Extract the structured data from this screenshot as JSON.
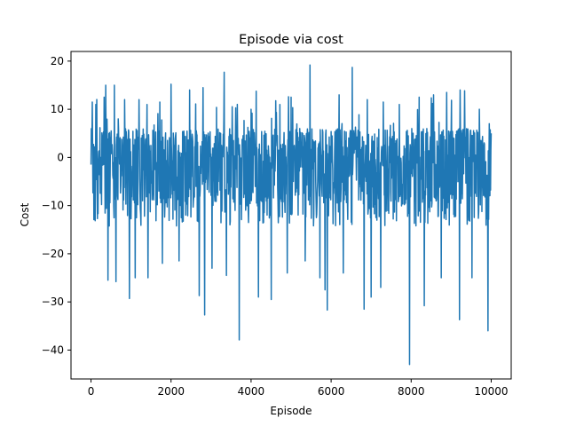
{
  "chart_data": {
    "type": "line",
    "title": "Episode via cost",
    "xlabel": "Episode",
    "ylabel": "Cost",
    "xlim": [
      -500,
      10500
    ],
    "ylim": [
      -46,
      22
    ],
    "x_ticks": [
      0,
      2000,
      4000,
      6000,
      8000,
      10000
    ],
    "x_tick_labels": [
      "0",
      "2000",
      "4000",
      "6000",
      "8000",
      "10000"
    ],
    "y_ticks": [
      -40,
      -30,
      -20,
      -10,
      0,
      10,
      20
    ],
    "y_tick_labels": [
      "−40",
      "−30",
      "−20",
      "−10",
      "0",
      "10",
      "20"
    ],
    "grid": false,
    "series": [
      {
        "color": "#1f77b4",
        "x_start": 0,
        "x_end": 10000,
        "band_low": -9.5,
        "band_high": 6.0,
        "peaks": [
          {
            "x": 30,
            "y": 11.5
          },
          {
            "x": 120,
            "y": 11.0
          },
          {
            "x": 330,
            "y": 12.5
          },
          {
            "x": 370,
            "y": 15.0
          },
          {
            "x": 580,
            "y": 15.0
          },
          {
            "x": 840,
            "y": 12.0
          },
          {
            "x": 1200,
            "y": 12.0
          },
          {
            "x": 1400,
            "y": 11.0
          },
          {
            "x": 1720,
            "y": 11.5
          },
          {
            "x": 2000,
            "y": 15.2
          },
          {
            "x": 2460,
            "y": 14.0
          },
          {
            "x": 2800,
            "y": 14.5
          },
          {
            "x": 3330,
            "y": 17.7
          },
          {
            "x": 4000,
            "y": 10.0
          },
          {
            "x": 4720,
            "y": 11.0
          },
          {
            "x": 5000,
            "y": 12.5
          },
          {
            "x": 5470,
            "y": 19.2
          },
          {
            "x": 5900,
            "y": 12.0
          },
          {
            "x": 6200,
            "y": 13.0
          },
          {
            "x": 6530,
            "y": 18.7
          },
          {
            "x": 6900,
            "y": 12.0
          },
          {
            "x": 7300,
            "y": 11.5
          },
          {
            "x": 7700,
            "y": 11.0
          },
          {
            "x": 8200,
            "y": 12.5
          },
          {
            "x": 8560,
            "y": 13.0
          },
          {
            "x": 8890,
            "y": 13.5
          },
          {
            "x": 9220,
            "y": 14.0
          },
          {
            "x": 9520,
            "y": 12.0
          },
          {
            "x": 9700,
            "y": 10.0
          },
          {
            "x": 9950,
            "y": 7.0
          }
        ],
        "troughs": [
          {
            "x": 80,
            "y": -11.0
          },
          {
            "x": 420,
            "y": -25.5
          },
          {
            "x": 620,
            "y": -25.8
          },
          {
            "x": 960,
            "y": -29.3
          },
          {
            "x": 1100,
            "y": -25.0
          },
          {
            "x": 1420,
            "y": -25.0
          },
          {
            "x": 1780,
            "y": -22.0
          },
          {
            "x": 2200,
            "y": -21.5
          },
          {
            "x": 2700,
            "y": -28.7
          },
          {
            "x": 2840,
            "y": -32.7
          },
          {
            "x": 3020,
            "y": -23.0
          },
          {
            "x": 3380,
            "y": -24.5
          },
          {
            "x": 3700,
            "y": -37.9
          },
          {
            "x": 4180,
            "y": -29.0
          },
          {
            "x": 4500,
            "y": -29.5
          },
          {
            "x": 4900,
            "y": -24.0
          },
          {
            "x": 5350,
            "y": -21.5
          },
          {
            "x": 5720,
            "y": -25.0
          },
          {
            "x": 5850,
            "y": -27.5
          },
          {
            "x": 5900,
            "y": -31.7
          },
          {
            "x": 6300,
            "y": -24.0
          },
          {
            "x": 6820,
            "y": -31.5
          },
          {
            "x": 7000,
            "y": -29.0
          },
          {
            "x": 7240,
            "y": -27.0
          },
          {
            "x": 7960,
            "y": -43.0
          },
          {
            "x": 8330,
            "y": -30.8
          },
          {
            "x": 8750,
            "y": -25.0
          },
          {
            "x": 9210,
            "y": -33.7
          },
          {
            "x": 9520,
            "y": -25.0
          },
          {
            "x": 9920,
            "y": -36.0
          }
        ]
      }
    ]
  }
}
